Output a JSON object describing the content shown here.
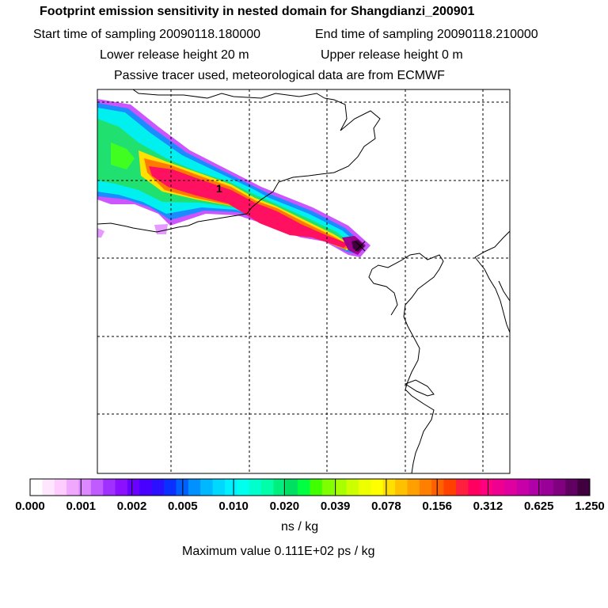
{
  "title": "Footprint emission sensitivity in nested domain for Shangdianzi_200901",
  "start_time": "Start time of sampling 20090118.180000",
  "end_time": "End time of sampling 20090118.210000",
  "lower_release": "Lower release height   20 m",
  "upper_release": "Upper release height    0 m",
  "tracer_info": "Passive tracer used, meteorological data are from ECMWF",
  "chart_data": {
    "type": "heatmap",
    "title": "Footprint emission sensitivity in nested domain for Shangdianzi_200901",
    "colorbar": {
      "tick_labels": [
        "0.000",
        "0.001",
        "0.002",
        "0.005",
        "0.010",
        "0.020",
        "0.039",
        "0.078",
        "0.156",
        "0.312",
        "0.625",
        "1.250"
      ],
      "units": "ns / kg",
      "colors": [
        "#ffffff",
        "#ffe6ff",
        "#ffccff",
        "#f0a8ff",
        "#dd88ff",
        "#c05cff",
        "#a030ff",
        "#8a10ff",
        "#6a00ff",
        "#4a00ff",
        "#2a10ff",
        "#0a30ff",
        "#0060ff",
        "#0090ff",
        "#00b8ff",
        "#00d8ff",
        "#00f0ff",
        "#00ffee",
        "#00ffcc",
        "#00ffa8",
        "#00f080",
        "#00e060",
        "#00ff40",
        "#40ff00",
        "#80ff00",
        "#a8ff00",
        "#ccff00",
        "#eeff00",
        "#ffff00",
        "#ffe000",
        "#ffc000",
        "#ffa000",
        "#ff8000",
        "#ff6000",
        "#ff4000",
        "#ff2040",
        "#ff0060",
        "#ff0080",
        "#f00090",
        "#e000a0",
        "#c800a8",
        "#b000a8",
        "#980098",
        "#800080",
        "#600060",
        "#400040"
      ]
    },
    "release_marker": "1",
    "max_value": "Maximum value  0.111E+02 ps / kg"
  }
}
